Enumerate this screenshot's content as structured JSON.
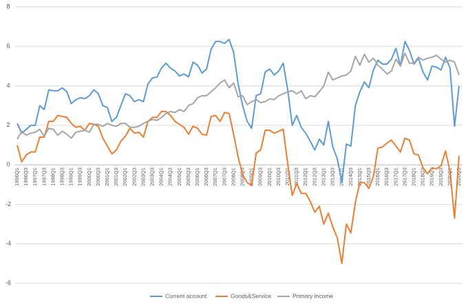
{
  "chart_data": {
    "type": "line",
    "categories": [
      "1996Q1",
      null,
      "1996Q3",
      null,
      "1997Q1",
      null,
      "1997Q3",
      null,
      "1998Q1",
      null,
      "1998Q3",
      null,
      "1999Q1",
      null,
      "1999Q3",
      null,
      "2000Q1",
      null,
      "2000Q3",
      null,
      "2001Q1",
      null,
      "2001Q3",
      null,
      "2002Q1",
      null,
      "2002Q3",
      null,
      "2003Q1",
      null,
      "2003Q3",
      null,
      "2004Q1",
      null,
      "2004Q3",
      null,
      "2005Q1",
      null,
      "2005Q3",
      null,
      "2006Q1",
      null,
      "2006Q3",
      null,
      "2007Q1",
      null,
      "2007Q3",
      null,
      "2008Q1",
      null,
      "2008Q3",
      null,
      "2009Q1",
      null,
      "2009Q3",
      null,
      "2010Q1",
      null,
      "2010Q3",
      null,
      "2011Q1",
      null,
      "2011Q3",
      null,
      "2012Q1",
      null,
      "2012Q3",
      null,
      "2013Q1",
      null,
      "2013Q3",
      null,
      "2014Q1",
      null,
      "2014Q3",
      null,
      "2015Q1",
      null,
      "2015Q3",
      null,
      "2016Q1",
      null,
      "2016Q3",
      null,
      "2017Q1",
      null,
      "2017Q3",
      null,
      "2018Q1",
      null,
      "2018Q3",
      null,
      "2019Q1",
      null,
      "2019Q3",
      null,
      "2020Q1",
      null,
      "2020Q3"
    ],
    "series": [
      {
        "name": "Current account",
        "color": "#5b9bd5",
        "values": [
          2.1,
          1.6,
          1.8,
          2.0,
          2.0,
          3.0,
          2.8,
          3.8,
          3.75,
          3.75,
          3.9,
          3.7,
          3.1,
          3.3,
          3.4,
          3.35,
          3.5,
          3.8,
          3.6,
          3.0,
          2.9,
          2.2,
          2.4,
          3.0,
          3.6,
          3.5,
          3.2,
          3.3,
          3.2,
          4.1,
          4.4,
          4.45,
          4.9,
          5.15,
          4.9,
          4.75,
          4.5,
          4.6,
          4.45,
          5.2,
          5.05,
          4.65,
          4.85,
          5.85,
          6.25,
          6.25,
          6.15,
          6.35,
          5.7,
          4.1,
          3.0,
          2.2,
          1.85,
          3.5,
          3.6,
          4.7,
          4.85,
          4.55,
          4.75,
          5.15,
          3.8,
          2.0,
          2.5,
          1.9,
          1.6,
          1.2,
          0.75,
          1.3,
          1.0,
          2.2,
          0.9,
          0.3,
          -0.9,
          1.05,
          0.95,
          3.0,
          3.7,
          4.2,
          3.9,
          4.8,
          5.3,
          5.1,
          5.1,
          5.35,
          5.9,
          5.0,
          6.25,
          5.8,
          5.1,
          5.4,
          4.7,
          4.3,
          5.0,
          4.95,
          4.8,
          5.45,
          4.9,
          1.95,
          4.0
        ]
      },
      {
        "name": "Goods&Service",
        "color": "#ed7d31",
        "values": [
          1.0,
          0.15,
          0.5,
          0.65,
          0.65,
          1.4,
          1.4,
          2.2,
          2.2,
          2.5,
          2.45,
          2.4,
          2.1,
          1.9,
          1.95,
          1.75,
          2.1,
          2.05,
          1.95,
          1.35,
          0.95,
          0.55,
          0.75,
          1.2,
          1.45,
          1.85,
          1.6,
          1.65,
          1.4,
          2.2,
          2.4,
          2.4,
          2.7,
          2.7,
          2.5,
          2.2,
          2.05,
          1.9,
          1.55,
          1.95,
          1.85,
          1.55,
          1.5,
          2.45,
          2.5,
          2.2,
          2.65,
          2.6,
          1.55,
          0.4,
          -0.5,
          -0.9,
          -1.05,
          0.6,
          0.75,
          1.75,
          1.75,
          1.6,
          1.7,
          1.8,
          0.05,
          -1.55,
          -0.95,
          -1.45,
          -1.45,
          -1.85,
          -2.4,
          -2.1,
          -3.0,
          -2.45,
          -3.15,
          -3.7,
          -5.0,
          -3.0,
          -3.45,
          -1.9,
          -0.9,
          -0.9,
          -1.2,
          -0.6,
          0.85,
          0.9,
          1.1,
          1.25,
          0.95,
          0.65,
          1.35,
          1.25,
          0.55,
          0.5,
          -0.15,
          -0.45,
          -0.15,
          -0.2,
          -0.05,
          0.7,
          -0.35,
          -2.7,
          0.45
        ]
      },
      {
        "name": "Primary income",
        "color": "#a5a5a5",
        "values": [
          1.3,
          1.7,
          1.5,
          1.6,
          1.65,
          1.8,
          1.45,
          1.85,
          1.8,
          1.5,
          1.7,
          1.55,
          1.35,
          1.65,
          1.7,
          1.75,
          1.65,
          2.05,
          2.05,
          1.95,
          2.1,
          2.0,
          1.95,
          2.1,
          2.1,
          1.9,
          1.9,
          1.95,
          2.1,
          2.2,
          2.3,
          2.25,
          2.4,
          2.6,
          2.7,
          2.65,
          2.8,
          2.7,
          3.0,
          3.1,
          3.4,
          3.5,
          3.5,
          3.7,
          3.9,
          4.15,
          4.3,
          3.9,
          4.15,
          3.45,
          3.5,
          3.05,
          3.2,
          3.3,
          3.15,
          3.2,
          3.35,
          3.3,
          3.5,
          3.6,
          3.7,
          3.75,
          3.6,
          3.75,
          3.35,
          3.5,
          3.45,
          3.7,
          4.0,
          4.7,
          4.3,
          4.4,
          4.5,
          4.55,
          4.75,
          5.5,
          5.05,
          5.6,
          5.2,
          5.4,
          5.05,
          4.85,
          4.6,
          4.75,
          5.35,
          5.0,
          5.65,
          5.15,
          5.15,
          5.45,
          5.3,
          5.4,
          5.45,
          5.55,
          5.35,
          5.2,
          5.3,
          5.2,
          4.55
        ]
      }
    ],
    "ylim": [
      -6,
      8
    ],
    "yticks": [
      -6,
      -4,
      -2,
      0,
      2,
      4,
      6,
      8
    ],
    "grid": true,
    "legend": "bottom"
  }
}
